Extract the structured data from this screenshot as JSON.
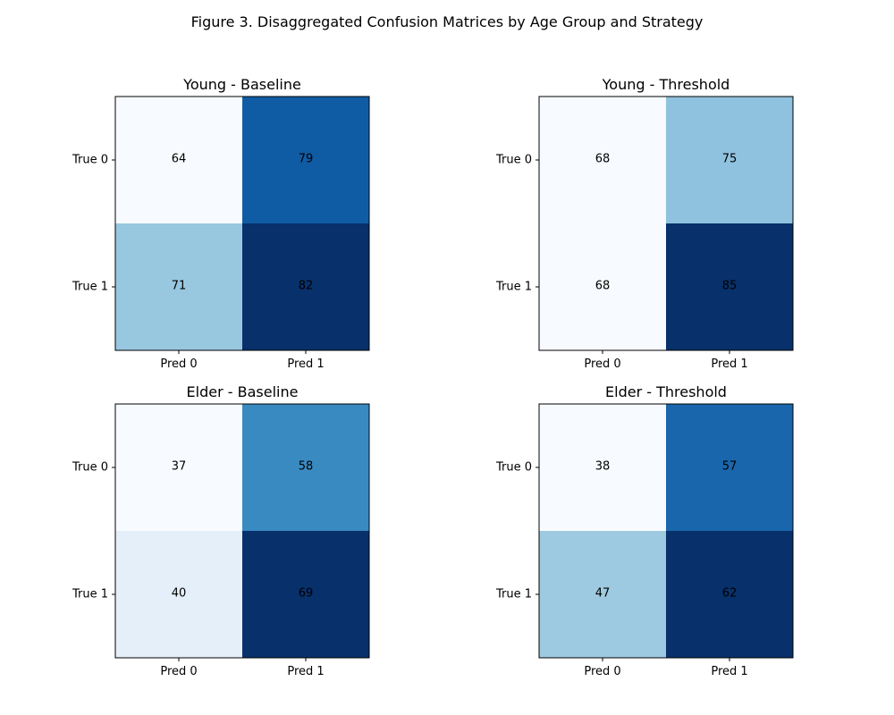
{
  "figure": {
    "title": "Figure 3. Disaggregated Confusion Matrices by Age Group and Strategy"
  },
  "chart_data": [
    {
      "type": "heatmap",
      "title": "Young - Baseline",
      "row_labels": [
        "True 0",
        "True 1"
      ],
      "col_labels": [
        "Pred 0",
        "Pred 1"
      ],
      "values": [
        [
          64,
          79
        ],
        [
          71,
          82
        ]
      ],
      "colormap": "Blues"
    },
    {
      "type": "heatmap",
      "title": "Young - Threshold",
      "row_labels": [
        "True 0",
        "True 1"
      ],
      "col_labels": [
        "Pred 0",
        "Pred 1"
      ],
      "values": [
        [
          68,
          75
        ],
        [
          68,
          85
        ]
      ],
      "colormap": "Blues"
    },
    {
      "type": "heatmap",
      "title": "Elder - Baseline",
      "row_labels": [
        "True 0",
        "True 1"
      ],
      "col_labels": [
        "Pred 0",
        "Pred 1"
      ],
      "values": [
        [
          37,
          58
        ],
        [
          40,
          69
        ]
      ],
      "colormap": "Blues"
    },
    {
      "type": "heatmap",
      "title": "Elder - Threshold",
      "row_labels": [
        "True 0",
        "True 1"
      ],
      "col_labels": [
        "Pred 0",
        "Pred 1"
      ],
      "values": [
        [
          38,
          57
        ],
        [
          47,
          62
        ]
      ],
      "colormap": "Blues"
    }
  ]
}
